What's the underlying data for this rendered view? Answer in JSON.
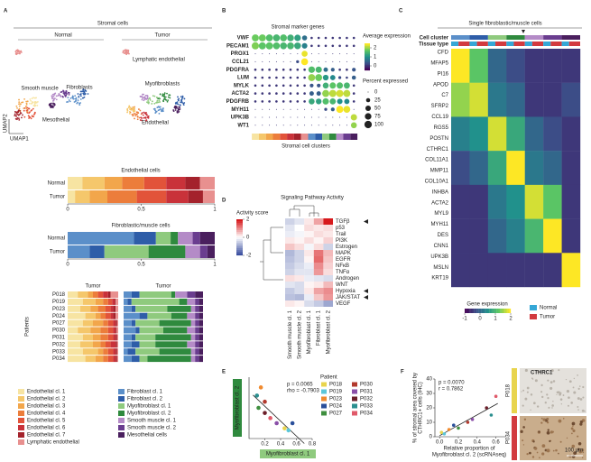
{
  "letters": [
    "A",
    "B",
    "C",
    "D",
    "E",
    "F"
  ],
  "a": {
    "title": "Stromal cells",
    "normal": "Normal",
    "tumor": "Tumor",
    "umap_labels": [
      "Lymphatic endothelial",
      "Smooth muscle",
      "Fibroblasts",
      "Mesothelial",
      "Myofibroblasts",
      "Endothelial"
    ],
    "umap1": "UMAP1",
    "umap2": "UMAP2",
    "endo_title": "Endothelial cells",
    "fib_title": "Fibroblastic/muscle cells",
    "rows": [
      "Normal",
      "Tumor"
    ],
    "xlim": [
      0,
      1
    ],
    "xticks": [
      0,
      0.5,
      1
    ],
    "endo": [
      [
        0.1,
        0.15,
        0.12,
        0.15,
        0.15,
        0.13,
        0.1,
        0.1
      ],
      [
        0.05,
        0.1,
        0.12,
        0.2,
        0.2,
        0.15,
        0.1,
        0.08
      ]
    ],
    "fib": [
      [
        0.45,
        0.15,
        0.1,
        0.05,
        0.1,
        0.05,
        0.1
      ],
      [
        0.15,
        0.1,
        0.3,
        0.25,
        0.1,
        0.05,
        0.05
      ]
    ],
    "patient_header": "Tumor",
    "patients_label": "Patients",
    "patients": [
      "P018",
      "P019",
      "P023",
      "P024",
      "P027",
      "P030",
      "P031",
      "P032",
      "P033",
      "P034"
    ],
    "patient_endo": [
      [
        0.2,
        0.2,
        0.1,
        0.1,
        0.1,
        0.1,
        0.05,
        0.15
      ],
      [
        0.3,
        0.25,
        0.15,
        0.1,
        0.08,
        0.05,
        0.02,
        0.05
      ],
      [
        0.25,
        0.2,
        0.15,
        0.15,
        0.1,
        0.05,
        0.05,
        0.05
      ],
      [
        0.35,
        0.2,
        0.1,
        0.1,
        0.1,
        0.05,
        0.05,
        0.05
      ],
      [
        0.3,
        0.2,
        0.2,
        0.1,
        0.1,
        0.05,
        0.03,
        0.02
      ],
      [
        0.2,
        0.25,
        0.2,
        0.15,
        0.1,
        0.05,
        0.02,
        0.03
      ],
      [
        0.3,
        0.2,
        0.15,
        0.15,
        0.1,
        0.05,
        0.03,
        0.02
      ],
      [
        0.25,
        0.25,
        0.15,
        0.1,
        0.1,
        0.1,
        0.03,
        0.02
      ],
      [
        0.3,
        0.3,
        0.1,
        0.1,
        0.1,
        0.05,
        0.03,
        0.02
      ],
      [
        0.35,
        0.2,
        0.15,
        0.1,
        0.1,
        0.05,
        0.03,
        0.02
      ]
    ],
    "patient_fib": [
      [
        0.1,
        0.1,
        0.4,
        0.05,
        0.15,
        0.1,
        0.1
      ],
      [
        0.05,
        0.05,
        0.6,
        0.1,
        0.1,
        0.05,
        0.05
      ],
      [
        0.1,
        0.05,
        0.4,
        0.3,
        0.05,
        0.05,
        0.05
      ],
      [
        0.2,
        0.1,
        0.3,
        0.2,
        0.1,
        0.05,
        0.05
      ],
      [
        0.1,
        0.05,
        0.3,
        0.4,
        0.05,
        0.05,
        0.05
      ],
      [
        0.15,
        0.05,
        0.3,
        0.3,
        0.1,
        0.05,
        0.05
      ],
      [
        0.1,
        0.05,
        0.25,
        0.45,
        0.05,
        0.05,
        0.05
      ],
      [
        0.1,
        0.1,
        0.2,
        0.4,
        0.1,
        0.05,
        0.05
      ],
      [
        0.05,
        0.1,
        0.3,
        0.4,
        0.05,
        0.05,
        0.05
      ],
      [
        0.1,
        0.1,
        0.1,
        0.55,
        0.05,
        0.05,
        0.05
      ]
    ],
    "endo_legend": [
      {
        "name": "Endothelial cl. 1",
        "color": "#f7e4a2"
      },
      {
        "name": "Endothelial cl. 2",
        "color": "#f5c76b"
      },
      {
        "name": "Endothelial cl. 3",
        "color": "#f2a64b"
      },
      {
        "name": "Endothelial cl. 4",
        "color": "#ec7d3b"
      },
      {
        "name": "Endothelial cl. 5",
        "color": "#e2533a"
      },
      {
        "name": "Endothelial cl. 6",
        "color": "#c9323a"
      },
      {
        "name": "Endothelial cl. 7",
        "color": "#a4222c"
      },
      {
        "name": "Lymphatic endothelial",
        "color": "#e8908f"
      }
    ],
    "fib_legend": [
      {
        "name": "Fibroblast cl. 1",
        "color": "#5b8fc9"
      },
      {
        "name": "Fibroblast cl. 2",
        "color": "#2e5da8"
      },
      {
        "name": "Myofibroblast cl. 1",
        "color": "#8fca7e"
      },
      {
        "name": "Myofibroblast cl. 2",
        "color": "#2f8a3e"
      },
      {
        "name": "Smooth muscle cl. 1",
        "color": "#b48bc7"
      },
      {
        "name": "Smooth muscle cl. 2",
        "color": "#6a3d8f"
      },
      {
        "name": "Mesothelial cells",
        "color": "#4a1f5e"
      }
    ]
  },
  "b": {
    "title": "Stromal marker genes",
    "genes": [
      "VWF",
      "PECAM1",
      "PROX1",
      "CCL21",
      "PDGFRA",
      "LUM",
      "MYLK",
      "ACTA2",
      "PDGFRB",
      "MYH11",
      "UPK3B",
      "WT1"
    ],
    "avg": [
      [
        1.8,
        1.8,
        1.6,
        1.5,
        1.6,
        1.4,
        1.2,
        0.6,
        0,
        0,
        0,
        0,
        0,
        0,
        0
      ],
      [
        1.9,
        1.7,
        1.7,
        1.6,
        1.5,
        1.5,
        1.3,
        0.8,
        0,
        0,
        0,
        0,
        0,
        0,
        0
      ],
      [
        0,
        0,
        0,
        0,
        0,
        0,
        0,
        2.4,
        0,
        0,
        0,
        0,
        0,
        0,
        0
      ],
      [
        0,
        0,
        0,
        0,
        0,
        0,
        0.2,
        2.5,
        0,
        0,
        0,
        0,
        0,
        0,
        0
      ],
      [
        0,
        0,
        0,
        0,
        0,
        0,
        0,
        0,
        1.6,
        1.5,
        0.6,
        0.4,
        0,
        0,
        0.3
      ],
      [
        0,
        0,
        0,
        0,
        0,
        0,
        0,
        0,
        2,
        1.8,
        1.1,
        0.9,
        0.2,
        0.1,
        0.4
      ],
      [
        0,
        0,
        0,
        0,
        0,
        0,
        0,
        0,
        0.3,
        0.3,
        1.4,
        1.7,
        1.6,
        1.5,
        0
      ],
      [
        0,
        0,
        0,
        0,
        0,
        0,
        0,
        0,
        0.4,
        0.4,
        2,
        2.2,
        2.3,
        2.2,
        0
      ],
      [
        0,
        0,
        0,
        0,
        0,
        0,
        0,
        0,
        1.3,
        1.2,
        1.6,
        1.5,
        1,
        0.9,
        0
      ],
      [
        0,
        0,
        0,
        0,
        0,
        0,
        0,
        0,
        0,
        0,
        0.2,
        0.4,
        2.5,
        2.4,
        0
      ],
      [
        0,
        0,
        0,
        0,
        0,
        0,
        0,
        0,
        0,
        0,
        0,
        0,
        0,
        0,
        2.2
      ],
      [
        0,
        0,
        0,
        0,
        0,
        0,
        0,
        0,
        0,
        0,
        0,
        0,
        0,
        0,
        2
      ]
    ],
    "pct": [
      [
        90,
        90,
        85,
        85,
        85,
        80,
        75,
        40,
        5,
        5,
        5,
        5,
        5,
        5,
        5
      ],
      [
        95,
        90,
        90,
        85,
        85,
        85,
        80,
        50,
        5,
        5,
        5,
        5,
        5,
        5,
        5
      ],
      [
        0,
        0,
        0,
        0,
        0,
        0,
        0,
        60,
        0,
        0,
        0,
        0,
        0,
        0,
        0
      ],
      [
        0,
        0,
        0,
        0,
        0,
        0,
        10,
        85,
        0,
        0,
        0,
        0,
        0,
        0,
        0
      ],
      [
        5,
        5,
        5,
        5,
        5,
        5,
        5,
        5,
        75,
        70,
        30,
        20,
        5,
        5,
        20
      ],
      [
        5,
        5,
        5,
        5,
        5,
        5,
        5,
        5,
        90,
        85,
        55,
        45,
        10,
        5,
        25
      ],
      [
        5,
        5,
        5,
        5,
        5,
        5,
        5,
        5,
        20,
        20,
        60,
        70,
        70,
        65,
        5
      ],
      [
        5,
        5,
        5,
        5,
        5,
        5,
        5,
        5,
        30,
        30,
        90,
        95,
        95,
        90,
        5
      ],
      [
        5,
        5,
        5,
        5,
        5,
        5,
        5,
        5,
        60,
        55,
        70,
        65,
        50,
        45,
        5
      ],
      [
        0,
        0,
        0,
        0,
        0,
        0,
        0,
        0,
        0,
        0,
        10,
        20,
        90,
        85,
        0
      ],
      [
        0,
        0,
        0,
        0,
        0,
        0,
        0,
        0,
        0,
        0,
        0,
        0,
        0,
        0,
        70
      ],
      [
        0,
        0,
        0,
        0,
        0,
        0,
        0,
        0,
        0,
        0,
        0,
        0,
        0,
        0,
        60
      ]
    ],
    "color_lim": [
      -0.5,
      2.5
    ],
    "avg_title": "Average expression",
    "avg_ticks": [
      2,
      1,
      0
    ],
    "pct_title": "Percent expressed",
    "pct_ticks": [
      0,
      25,
      50,
      75,
      100
    ],
    "clusters_label": "Stromal cell clusters"
  },
  "c": {
    "title": "Single fibroblastic/muscle cells",
    "cell_cluster": "Cell cluster",
    "tissue_type": "Tissue type",
    "genes": [
      "CFD",
      "MFAP5",
      "PI16",
      "APOD",
      "C7",
      "SFRP2",
      "CCL19",
      "RGS5",
      "POSTN",
      "CTHRC1",
      "COL11A1",
      "MMP11",
      "COL10A1",
      "INHBA",
      "ACTA2",
      "MYL9",
      "MYH11",
      "DES",
      "CNN1",
      "UPK3B",
      "MSLN",
      "KRT19"
    ],
    "matrix": [
      [
        2,
        1.2,
        0,
        -0.3,
        -0.5,
        -0.5,
        -0.5
      ],
      [
        1.5,
        1.8,
        0.2,
        0,
        -0.5,
        -0.5,
        -0.3
      ],
      [
        0.3,
        0.5,
        1.8,
        0.8,
        0,
        -0.3,
        -0.5
      ],
      [
        -0.3,
        0,
        0.8,
        2,
        0.2,
        0,
        -0.5
      ],
      [
        -0.5,
        -0.5,
        0.2,
        0.5,
        1.8,
        1.2,
        -0.5
      ],
      [
        -0.5,
        -0.5,
        0,
        0.3,
        1,
        2,
        -0.5
      ],
      [
        -0.5,
        -0.5,
        -0.5,
        -0.5,
        -0.5,
        -0.5,
        2
      ]
    ],
    "color_lim": [
      -1,
      2
    ],
    "legend_title": "Gene expression",
    "legend_ticks": [
      -1,
      0,
      1,
      2
    ],
    "normal": "Normal",
    "tumor": "Tumor"
  },
  "d": {
    "title": "Signaling Pathway Activity",
    "score_label": "Activity score",
    "score_ticks": [
      2,
      0,
      -2
    ],
    "color_lim": [
      -2,
      2
    ],
    "pathways": [
      "TGFβ",
      "p53",
      "Trail",
      "PI3K",
      "Estrogen",
      "MAPK",
      "EGFR",
      "NFκB",
      "TNFα",
      "Androgen",
      "WNT",
      "Hypoxia",
      "JAK/STAT",
      "VEGF"
    ],
    "columns": [
      "Smooth muscle cl. 1",
      "Smooth muscle cl. 2",
      "Myofibroblast cl. 1",
      "Fibroblast cl. 1",
      "Myofibroblast cl. 2"
    ],
    "matrix": [
      [
        -0.5,
        -0.3,
        0.2,
        0.8,
        2
      ],
      [
        -0.3,
        0,
        0.3,
        0.2,
        0.3
      ],
      [
        -0.2,
        -0.1,
        0.1,
        0.3,
        0.2
      ],
      [
        0.2,
        0.1,
        0.3,
        0.1,
        0.4
      ],
      [
        0.5,
        0.3,
        -0.1,
        0.3,
        -0.5
      ],
      [
        -0.8,
        -0.5,
        0.2,
        1.2,
        0.6
      ],
      [
        -0.7,
        -0.5,
        0.1,
        1.3,
        0.5
      ],
      [
        -0.6,
        -0.4,
        -0.2,
        1,
        0.4
      ],
      [
        -0.5,
        -0.3,
        -0.3,
        0.9,
        0.3
      ],
      [
        0.3,
        0.2,
        -0.2,
        -0.3,
        -0.4
      ],
      [
        -0.3,
        -0.4,
        0.1,
        0.2,
        0.6
      ],
      [
        -0.6,
        -0.4,
        0.2,
        0.8,
        1
      ],
      [
        -0.7,
        -0.8,
        -0.2,
        0.5,
        0.9
      ],
      [
        0.2,
        0.1,
        -0.4,
        -0.6,
        -1
      ]
    ]
  },
  "e": {
    "type": "scatter",
    "xlabel": "Myofibroblast cl. 1",
    "ylabel": "Myofibroblast cl. 2",
    "stats": [
      "p = 0.0065",
      "rho = -0.7903"
    ],
    "xlim": [
      0,
      0.8
    ],
    "ylim": [
      0,
      0.6
    ],
    "xticks": [
      0.2,
      0.4,
      0.6,
      0.8
    ],
    "legend_title": "Patient",
    "series": [
      {
        "name": "P018",
        "color": "#e8d44d",
        "x": 0.45,
        "y": 0.1
      },
      {
        "name": "P019",
        "color": "#5cc6d8",
        "x": 0.5,
        "y": 0.08
      },
      {
        "name": "P023",
        "color": "#f08a2e",
        "x": 0.15,
        "y": 0.5
      },
      {
        "name": "P024",
        "color": "#2a4f9a",
        "x": 0.55,
        "y": 0.15
      },
      {
        "name": "P027",
        "color": "#3f8f3f",
        "x": 0.12,
        "y": 0.3
      },
      {
        "name": "P030",
        "color": "#b23a2e",
        "x": 0.2,
        "y": 0.36
      },
      {
        "name": "P031",
        "color": "#8a4fa8",
        "x": 0.35,
        "y": 0.15
      },
      {
        "name": "P032",
        "color": "#6b1f2a",
        "x": 0.2,
        "y": 0.25
      },
      {
        "name": "P033",
        "color": "#2b8f8f",
        "x": 0.1,
        "y": 0.42
      },
      {
        "name": "P034",
        "color": "#e05a6a",
        "x": 0.27,
        "y": 0.2
      }
    ]
  },
  "f": {
    "type": "scatter",
    "stats": [
      "p = 0.0070",
      "r = 0.7862"
    ],
    "ylabel": [
      "% of stromal area covered by",
      "CTHRC1+ cells (IHC)"
    ],
    "xlabel": [
      "Relative proportion of",
      "Myofibroblast cl. 2 (scRNAseq)"
    ],
    "xlim": [
      -0.05,
      0.7
    ],
    "ylim": [
      0,
      40
    ],
    "xticks": [
      {
        "value": 0,
        "label": "0.0"
      },
      0.2,
      0.4,
      0.6
    ],
    "yticks": [
      0,
      10,
      20,
      30,
      40
    ],
    "x": [
      0.02,
      0.05,
      0.1,
      0.15,
      0.2,
      0.3,
      0.35,
      0.5,
      0.55,
      0.6
    ],
    "y": [
      3,
      2,
      5,
      8,
      6,
      10,
      12,
      20,
      15,
      28
    ],
    "image_title": "CTHRC1",
    "images": [
      "P018",
      "P034"
    ],
    "scale": "100 µm"
  }
}
